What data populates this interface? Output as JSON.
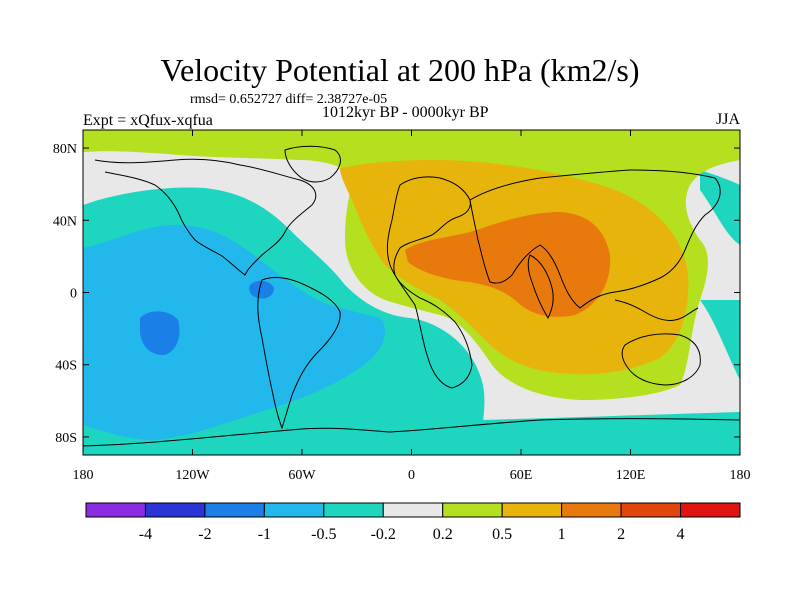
{
  "title": "Velocity Potential at 200 hPa (km2/s)",
  "stats_line": "rmsd= 0.652727  diff= 2.38727e-05",
  "experiment_label": "Expt = xQfux-xqfua",
  "period_label": "1012kyr BP - 0000kyr BP",
  "season_label": "JJA",
  "map": {
    "lon_ticks": [
      "180",
      "120W",
      "60W",
      "0",
      "60E",
      "120E",
      "180"
    ],
    "lat_ticks": [
      "80N",
      "40N",
      "0",
      "40S",
      "80S"
    ],
    "background_color": "#e8e8e8",
    "coastline_color": "#000000"
  },
  "colorbar": {
    "colors": [
      "#8b2be2",
      "#2b35d6",
      "#1a7fe6",
      "#22b8ec",
      "#1ed6c0",
      "#e8e8e8",
      "#b5e01f",
      "#e7b40c",
      "#e87a0d",
      "#e2440e",
      "#e01212"
    ],
    "labels": [
      "-4",
      "-2",
      "-1",
      "-0.5",
      "-0.2",
      "0.2",
      "0.5",
      "1",
      "2",
      "4"
    ]
  }
}
